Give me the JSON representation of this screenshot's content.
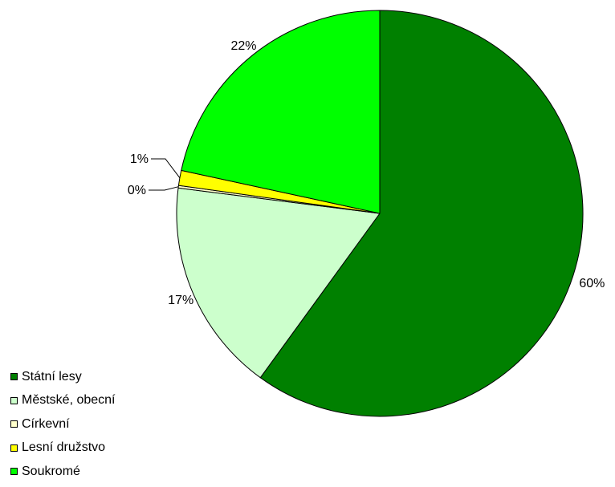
{
  "chart_data": {
    "type": "pie",
    "slices": [
      {
        "label": "Státní lesy",
        "value": 60,
        "display": "60%",
        "color": "#008000"
      },
      {
        "label": "Městské, obecní",
        "value": 17,
        "display": "17%",
        "color": "#ccffcc"
      },
      {
        "label": "Církevní",
        "value": 0.2,
        "display": "0%",
        "color": "#ffffcc"
      },
      {
        "label": "Lesní družstvo",
        "value": 1.2,
        "display": "1%",
        "color": "#ffff00"
      },
      {
        "label": "Soukromé",
        "value": 21.6,
        "display": "22%",
        "color": "#00ff00"
      }
    ],
    "legend_position": "bottom-left",
    "start_angle": "12 o'clock, clockwise"
  }
}
